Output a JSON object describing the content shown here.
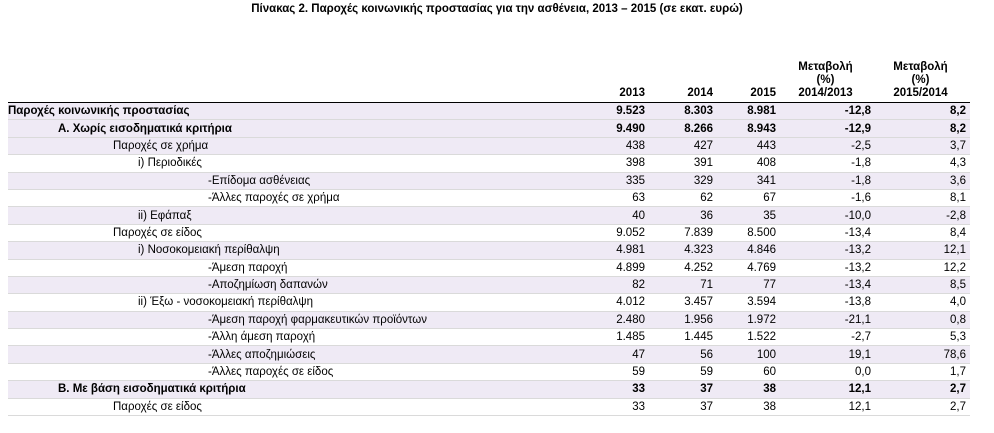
{
  "title": "Πίνακας 2. Παροχές κοινωνικής προστασίας για την  ασθένεια, 2013 – 2015 (σε εκατ. ευρώ)",
  "headers": {
    "y2013": "2013",
    "y2014": "2014",
    "y2015": "2015",
    "change1": [
      "Μεταβολή",
      "(%)",
      "2014/2013"
    ],
    "change2": [
      "Μεταβολή",
      "(%)",
      "2015/2014"
    ]
  },
  "rows": [
    {
      "label": "Παροχές κοινωνικής προστασίας",
      "level": 0,
      "bold": true,
      "shaded": true,
      "values": [
        "9.523",
        "8.303",
        "8.981",
        "-12,8",
        "8,2"
      ]
    },
    {
      "label": "Α. Χωρίς εισοδηματικά κριτήρια",
      "level": 1,
      "bold": true,
      "shaded": true,
      "values": [
        "9.490",
        "8.266",
        "8.943",
        "-12,9",
        "8,2"
      ]
    },
    {
      "label": "Παροχές σε χρήμα",
      "level": 2,
      "bold": false,
      "shaded": true,
      "values": [
        "438",
        "427",
        "443",
        "-2,5",
        "3,7"
      ]
    },
    {
      "label": "i) Περιοδικές",
      "level": 3,
      "bold": false,
      "shaded": false,
      "values": [
        "398",
        "391",
        "408",
        "-1,8",
        "4,3"
      ]
    },
    {
      "label": "-Επίδομα ασθένειας",
      "level": 4,
      "bold": false,
      "shaded": true,
      "values": [
        "335",
        "329",
        "341",
        "-1,8",
        "3,6"
      ]
    },
    {
      "label": "-Άλλες παροχές σε χρήμα",
      "level": 4,
      "bold": false,
      "shaded": false,
      "values": [
        "63",
        "62",
        "67",
        "-1,6",
        "8,1"
      ]
    },
    {
      "label": "ii) Εφάπαξ",
      "level": 3,
      "bold": false,
      "shaded": true,
      "values": [
        "40",
        "36",
        "35",
        "-10,0",
        "-2,8"
      ]
    },
    {
      "label": "Παροχές σε είδος",
      "level": 2,
      "bold": false,
      "shaded": false,
      "values": [
        "9.052",
        "7.839",
        "8.500",
        "-13,4",
        "8,4"
      ]
    },
    {
      "label": "i) Νοσοκομειακή περίθαλψη",
      "level": 3,
      "bold": false,
      "shaded": true,
      "values": [
        "4.981",
        "4.323",
        "4.846",
        "-13,2",
        "12,1"
      ]
    },
    {
      "label": "-Άμεση παροχή",
      "level": 4,
      "bold": false,
      "shaded": false,
      "values": [
        "4.899",
        "4.252",
        "4.769",
        "-13,2",
        "12,2"
      ]
    },
    {
      "label": "-Αποζημίωση δαπανών",
      "level": 4,
      "bold": false,
      "shaded": true,
      "values": [
        "82",
        "71",
        "77",
        "-13,4",
        "8,5"
      ]
    },
    {
      "label": "ii) Έξω - νοσοκομειακή περίθαλψη",
      "level": 3,
      "bold": false,
      "shaded": false,
      "values": [
        "4.012",
        "3.457",
        "3.594",
        "-13,8",
        "4,0"
      ]
    },
    {
      "label": "-Άμεση παροχή φαρμακευτικών προϊόντων",
      "level": 4,
      "bold": false,
      "shaded": true,
      "values": [
        "2.480",
        "1.956",
        "1.972",
        "-21,1",
        "0,8"
      ]
    },
    {
      "label": "-Άλλη άμεση παροχή",
      "level": 4,
      "bold": false,
      "shaded": false,
      "values": [
        "1.485",
        "1.445",
        "1.522",
        "-2,7",
        "5,3"
      ]
    },
    {
      "label": "-Άλλες αποζημιώσεις",
      "level": 4,
      "bold": false,
      "shaded": true,
      "values": [
        "47",
        "56",
        "100",
        "19,1",
        "78,6"
      ]
    },
    {
      "label": "-Άλλες παροχές σε είδος",
      "level": 4,
      "bold": false,
      "shaded": false,
      "values": [
        "59",
        "59",
        "60",
        "0,0",
        "1,7"
      ]
    },
    {
      "label": "Β. Με βάση εισοδηματικά κριτήρια",
      "level": 1,
      "bold": true,
      "shaded": true,
      "values": [
        "33",
        "37",
        "38",
        "12,1",
        "2,7"
      ]
    },
    {
      "label": "Παροχές σε είδος",
      "level": 2,
      "bold": false,
      "shaded": false,
      "values": [
        "33",
        "37",
        "38",
        "12,1",
        "2,7"
      ]
    }
  ]
}
